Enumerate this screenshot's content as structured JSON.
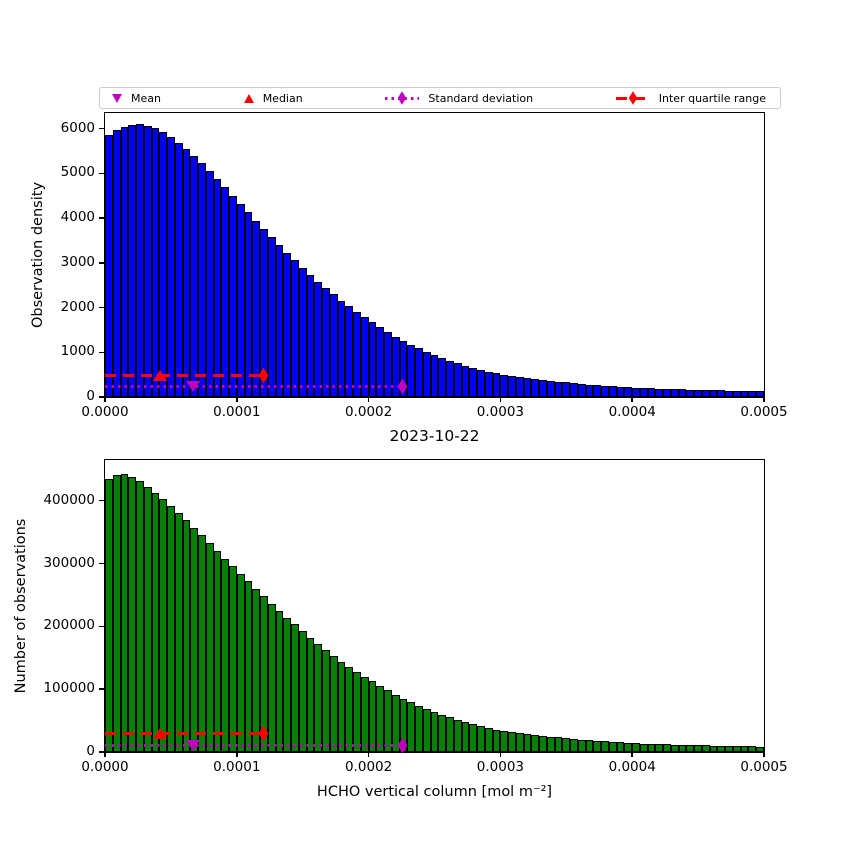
{
  "figure": {
    "background": "#ffffff",
    "title": "2023-10-22"
  },
  "legend": {
    "items": [
      {
        "label": "Mean",
        "marker": "triangle-down",
        "line": "none",
        "color": "#bf00bf"
      },
      {
        "label": "Median",
        "marker": "triangle-up",
        "line": "none",
        "color": "#ff0000"
      },
      {
        "label": "Standard deviation",
        "marker": "diamond",
        "line": "dotted",
        "color": "#bf00bf"
      },
      {
        "label": "Inter quartile range",
        "marker": "diamond",
        "line": "dashed",
        "color": "#ff0000"
      }
    ]
  },
  "chart_data": [
    {
      "type": "bar",
      "subtype": "histogram",
      "title": "2023-10-22",
      "ylabel": "Observation density",
      "xlabel": "",
      "bar_color": "#0000f5",
      "bar_edge_color": "#000000",
      "xlim": [
        0,
        0.0005
      ],
      "ylim": [
        0,
        6350
      ],
      "n_bins": 85,
      "bin_start": 0,
      "bin_width": 5.882e-06,
      "xticks": {
        "values": [
          0,
          0.0001,
          0.0002,
          0.0003,
          0.0004,
          0.0005
        ],
        "labels": [
          "0.0000",
          "0.0001",
          "0.0002",
          "0.0003",
          "0.0004",
          "0.0005"
        ]
      },
      "yticks": {
        "values": [
          0,
          1000,
          2000,
          3000,
          4000,
          5000,
          6000
        ],
        "labels": [
          "0",
          "1000",
          "2000",
          "3000",
          "4000",
          "5000",
          "6000"
        ]
      },
      "values": [
        5850,
        5960,
        6035,
        6085,
        6100,
        6070,
        6007,
        5918,
        5810,
        5682,
        5547,
        5390,
        5225,
        5048,
        4871,
        4688,
        4502,
        4315,
        4128,
        3945,
        3758,
        3575,
        3395,
        3222,
        3053,
        2888,
        2730,
        2578,
        2432,
        2292,
        2157,
        2030,
        1908,
        1790,
        1680,
        1562,
        1453,
        1351,
        1257,
        1169,
        1087,
        1011,
        940,
        874,
        813,
        756,
        703,
        654,
        608,
        566,
        526,
        489,
        465,
        441,
        419,
        398,
        379,
        360,
        342,
        325,
        308,
        293,
        278,
        264,
        251,
        239,
        227,
        215,
        205,
        199,
        193,
        187,
        181,
        176,
        171,
        166,
        161,
        156,
        151,
        147,
        142,
        138,
        134,
        130,
        126
      ],
      "annotations": {
        "mean_x": 6.7e-05,
        "median_x": 4.2e-05,
        "iqr_line": {
          "x0": 0,
          "x1": 0.00012,
          "y": 475,
          "style": "dashed",
          "color": "#ff0000"
        },
        "std_line": {
          "x0": 0,
          "x1": 0.000226,
          "y": 230,
          "style": "dotted",
          "color": "#bf00bf"
        }
      }
    },
    {
      "type": "bar",
      "subtype": "histogram",
      "title": "",
      "ylabel": "Number of observations",
      "xlabel": "HCHO vertical column [mol m⁻²]",
      "bar_color": "#078007",
      "bar_edge_color": "#000000",
      "xlim": [
        0,
        0.0005
      ],
      "ylim": [
        0,
        464800
      ],
      "n_bins": 85,
      "bin_start": 0,
      "bin_width": 5.882e-06,
      "xticks": {
        "values": [
          0,
          0.0001,
          0.0002,
          0.0003,
          0.0004,
          0.0005
        ],
        "labels": [
          "0.0000",
          "0.0001",
          "0.0002",
          "0.0003",
          "0.0004",
          "0.0005"
        ]
      },
      "yticks": {
        "values": [
          0,
          100000,
          200000,
          300000,
          400000
        ],
        "labels": [
          "0",
          "100000",
          "200000",
          "300000",
          "400000"
        ]
      },
      "values": [
        435000,
        441000,
        443000,
        437000,
        431000,
        422000,
        413000,
        403000,
        392000,
        381000,
        369000,
        357000,
        345000,
        333000,
        320000,
        308000,
        296000,
        284000,
        272000,
        260000,
        248000,
        236000,
        225000,
        214000,
        203000,
        192000,
        182000,
        172000,
        162000,
        153000,
        144000,
        136000,
        128000,
        120000,
        113000,
        105000,
        98000,
        91000,
        85000,
        79000,
        73500,
        68500,
        63700,
        59200,
        55100,
        51200,
        47600,
        44300,
        41200,
        38300,
        35600,
        33100,
        31500,
        29900,
        28400,
        27000,
        25600,
        24300,
        23100,
        22000,
        20900,
        19800,
        18800,
        17900,
        17000,
        16200,
        15400,
        14600,
        13900,
        13500,
        13100,
        12700,
        12300,
        11900,
        11600,
        11200,
        10900,
        10600,
        10300,
        10000,
        9700,
        9400,
        9100,
        8800,
        8600
      ],
      "annotations": {
        "mean_x": 6.7e-05,
        "median_x": 4.2e-05,
        "iqr_line": {
          "x0": 0,
          "x1": 0.00012,
          "y": 30000,
          "style": "dashed",
          "color": "#ff0000"
        },
        "std_line": {
          "x0": 0,
          "x1": 0.000226,
          "y": 10500,
          "style": "dotted",
          "color": "#bf00bf"
        }
      }
    }
  ]
}
